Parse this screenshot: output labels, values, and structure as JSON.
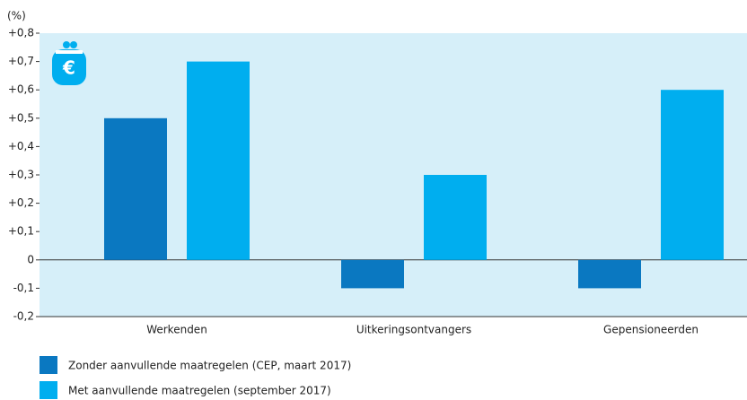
{
  "chart_data": {
    "type": "bar",
    "y_unit": "(%)",
    "categories": [
      "Werkenden",
      "Uitkeringsontvangers",
      "Gepensioneerden"
    ],
    "series": [
      {
        "name": "Zonder aanvullende maatregelen (CEP, maart 2017)",
        "color": "#0a78c1",
        "values": [
          0.5,
          -0.1,
          -0.1
        ]
      },
      {
        "name": "Met aanvullende maatregelen (september 2017)",
        "color": "#00aeef",
        "values": [
          0.7,
          0.3,
          0.6
        ]
      }
    ],
    "ylim": [
      -0.2,
      0.8
    ],
    "yticks": [
      {
        "value": -0.2,
        "label": "-0,2"
      },
      {
        "value": -0.1,
        "label": "-0,1"
      },
      0,
      {
        "value": 0.1,
        "label": "+0,1"
      },
      {
        "value": 0.2,
        "label": "+0,2"
      },
      {
        "value": 0.3,
        "label": "+0,3"
      },
      {
        "value": 0.4,
        "label": "+0,4"
      },
      {
        "value": 0.5,
        "label": "+0,5"
      },
      {
        "value": 0.6,
        "label": "+0,6"
      },
      {
        "value": 0.7,
        "label": "+0,7"
      },
      {
        "value": 0.8,
        "label": "+0,8"
      }
    ],
    "legend": "bottom-left",
    "background": "#d6eff9"
  }
}
